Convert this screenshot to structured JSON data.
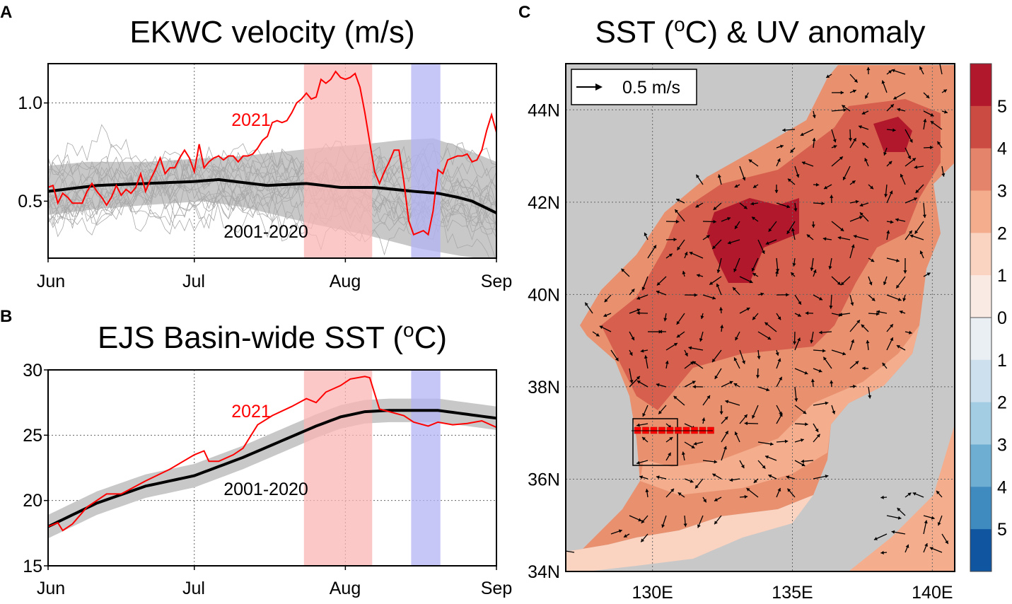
{
  "panel_labels": {
    "a": "A",
    "b": "B",
    "c": "C"
  },
  "colors": {
    "y2021": "#ff0000",
    "clim": "#000000",
    "band": "#c8c8c8",
    "years": "#a8a8a8",
    "warm_event": "#f9b4b4",
    "cold_event": "#b4b4f4",
    "land": "#c8c8c8"
  },
  "chart_data": [
    {
      "type": "line",
      "title": "EKWC velocity (m/s)",
      "xlabel": "",
      "ylabel": "",
      "x_ticks": [
        {
          "day": 0,
          "label": "Jun"
        },
        {
          "day": 30,
          "label": "Jul"
        },
        {
          "day": 61,
          "label": "Aug"
        },
        {
          "day": 92,
          "label": "Sep"
        }
      ],
      "y_ticks": [
        {
          "value": 1.0,
          "label": "1.0"
        },
        {
          "value": 0.5,
          "label": "0.5"
        }
      ],
      "xlim": [
        0,
        92
      ],
      "ylim": [
        0.21,
        1.2
      ],
      "shaded_periods": [
        {
          "from": 52.5,
          "to": 66.5,
          "kind": "warm"
        },
        {
          "from": 74.5,
          "to": 80.5,
          "kind": "cold"
        }
      ],
      "annotations": {
        "y2021": "2021",
        "clim": "2001-2020"
      },
      "series": [
        {
          "name": "2021",
          "days": [
            0,
            1,
            2,
            3,
            4,
            5,
            6,
            7,
            8,
            9,
            10,
            11,
            12,
            13,
            14,
            15,
            16,
            17,
            18,
            19,
            20,
            21,
            22,
            23,
            24,
            25,
            26,
            27,
            28,
            29,
            30,
            31,
            32,
            33,
            34,
            35,
            36,
            37,
            38,
            39,
            40,
            41,
            42,
            43,
            44,
            45,
            46,
            47,
            48,
            49,
            50,
            51,
            52,
            53,
            54,
            55,
            56,
            57,
            58,
            59,
            60,
            61,
            62,
            63,
            64,
            65,
            66,
            67,
            68,
            69,
            70,
            71,
            72,
            73,
            74,
            75,
            76,
            77,
            78,
            79,
            80,
            81,
            82,
            83,
            84,
            85,
            86,
            87,
            88,
            89,
            90,
            91,
            92
          ],
          "values": [
            0.57,
            0.58,
            0.49,
            0.54,
            0.52,
            0.49,
            0.49,
            0.49,
            0.55,
            0.59,
            0.55,
            0.52,
            0.48,
            0.52,
            0.58,
            0.53,
            0.56,
            0.54,
            0.57,
            0.64,
            0.55,
            0.61,
            0.66,
            0.72,
            0.64,
            0.67,
            0.67,
            0.72,
            0.76,
            0.72,
            0.65,
            0.79,
            0.67,
            0.7,
            0.72,
            0.73,
            0.71,
            0.73,
            0.73,
            0.7,
            0.73,
            0.73,
            0.74,
            0.77,
            0.81,
            0.83,
            0.9,
            0.91,
            0.9,
            0.91,
            0.95,
            1.0,
            1.02,
            1.05,
            1.02,
            1.03,
            1.12,
            1.1,
            1.12,
            1.16,
            1.13,
            1.12,
            1.13,
            1.15,
            1.08,
            0.95,
            0.8,
            0.65,
            0.59,
            0.65,
            0.7,
            0.76,
            0.76,
            0.6,
            0.4,
            0.33,
            0.34,
            0.35,
            0.33,
            0.45,
            0.66,
            0.64,
            0.71,
            0.72,
            0.73,
            0.73,
            0.74,
            0.7,
            0.71,
            0.76,
            0.86,
            0.94,
            0.85
          ]
        },
        {
          "name": "2001-2020 mean",
          "days": [
            0,
            10,
            20,
            30,
            35,
            45,
            53,
            60,
            67,
            75,
            80,
            84,
            87,
            92
          ],
          "values": [
            0.55,
            0.58,
            0.59,
            0.6,
            0.61,
            0.58,
            0.59,
            0.57,
            0.57,
            0.55,
            0.54,
            0.52,
            0.5,
            0.44
          ]
        },
        {
          "name": "2001-2020 band upper",
          "days": [
            0,
            8,
            20,
            40,
            55,
            65,
            72,
            79,
            84,
            92
          ],
          "values": [
            0.68,
            0.7,
            0.7,
            0.73,
            0.77,
            0.79,
            0.81,
            0.82,
            0.78,
            0.7
          ]
        },
        {
          "name": "2001-2020 band lower",
          "days": [
            0,
            10,
            20,
            32,
            40,
            55,
            65,
            76,
            85,
            92
          ],
          "values": [
            0.43,
            0.46,
            0.48,
            0.5,
            0.47,
            0.38,
            0.33,
            0.26,
            0.22,
            0.2
          ]
        }
      ],
      "individual_years_count": 20
    },
    {
      "type": "line",
      "title_parts": [
        "EJS Basin-wide SST (",
        "o",
        "C)"
      ],
      "xlabel": "",
      "ylabel": "",
      "x_ticks": [
        {
          "day": 0,
          "label": "Jun"
        },
        {
          "day": 30,
          "label": "Jul"
        },
        {
          "day": 61,
          "label": "Aug"
        },
        {
          "day": 92,
          "label": "Sep"
        }
      ],
      "y_ticks": [
        {
          "value": 30,
          "label": "30"
        },
        {
          "value": 25,
          "label": "25"
        },
        {
          "value": 20,
          "label": "20"
        },
        {
          "value": 15,
          "label": "15"
        }
      ],
      "xlim": [
        0,
        92
      ],
      "ylim": [
        15,
        30
      ],
      "shaded_periods": [
        {
          "from": 52.5,
          "to": 66.5,
          "kind": "warm"
        },
        {
          "from": 74.5,
          "to": 80.5,
          "kind": "cold"
        }
      ],
      "annotations": {
        "y2021": "2021",
        "clim": "2001-2020"
      },
      "series": [
        {
          "name": "2021",
          "days": [
            0,
            2,
            3,
            5,
            8,
            12,
            15,
            20,
            25,
            30,
            32,
            33,
            35,
            38,
            40,
            43,
            46,
            50,
            53,
            55,
            57,
            60,
            62,
            65,
            66,
            68,
            70,
            73,
            75,
            78,
            80,
            83,
            86,
            89,
            92
          ],
          "values": [
            18.0,
            18.3,
            17.7,
            18.2,
            19.5,
            20.5,
            20.5,
            21.5,
            22.4,
            23.5,
            23.8,
            23.0,
            23.0,
            23.5,
            24.0,
            25.8,
            26.5,
            27.2,
            27.8,
            27.5,
            28.3,
            28.8,
            29.3,
            29.5,
            29.4,
            27.0,
            26.8,
            26.5,
            26.0,
            25.7,
            26.0,
            25.8,
            25.9,
            26.1,
            25.6
          ]
        },
        {
          "name": "2001-2020 mean",
          "days": [
            0,
            10,
            20,
            30,
            40,
            50,
            55,
            60,
            65,
            70,
            80,
            92
          ],
          "values": [
            18.0,
            19.8,
            21.1,
            21.9,
            23.3,
            24.9,
            25.7,
            26.4,
            26.8,
            26.9,
            26.9,
            26.3
          ]
        },
        {
          "name": "2001-2020 band halfwidth",
          "value": 0.9
        }
      ]
    },
    {
      "type": "heatmap",
      "title_parts": [
        "SST (",
        "o",
        "C) & UV anomaly"
      ],
      "x_ticks": [
        {
          "value": 130,
          "label": "130E"
        },
        {
          "value": 135,
          "label": "135E"
        },
        {
          "value": 140,
          "label": "140E"
        }
      ],
      "y_ticks": [
        {
          "value": 44,
          "label": "44N"
        },
        {
          "value": 42,
          "label": "42N"
        },
        {
          "value": 40,
          "label": "40N"
        },
        {
          "value": 38,
          "label": "38N"
        },
        {
          "value": 36,
          "label": "36N"
        },
        {
          "value": 34,
          "label": "34N"
        }
      ],
      "xlim": [
        126.9,
        140.8
      ],
      "ylim": [
        34,
        45
      ],
      "reference_vector": "0.5 m/s",
      "colorbar": {
        "labels": [
          "5",
          "4",
          "3",
          "2",
          "1",
          "0",
          "1",
          "2",
          "3",
          "4",
          "5"
        ],
        "colors": [
          "#b2182b",
          "#cb4a42",
          "#e4846a",
          "#f4ae8d",
          "#fad3c1",
          "#f9ebe4",
          "#e9eff3",
          "#cce0ee",
          "#a3cde2",
          "#6eaed2",
          "#3f8bc0",
          "#0f55a0"
        ]
      },
      "section_stations_count": 10
    }
  ]
}
